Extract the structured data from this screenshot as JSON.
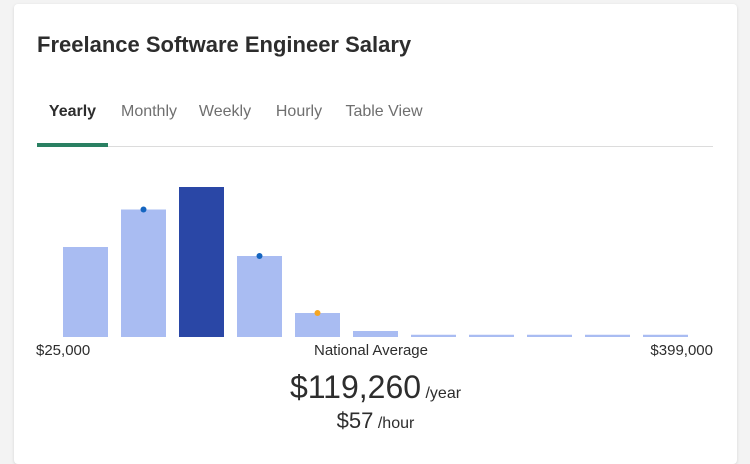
{
  "card": {
    "title": "Freelance Software Engineer Salary"
  },
  "tabs": [
    {
      "label": "Yearly",
      "active": true
    },
    {
      "label": "Monthly",
      "active": false
    },
    {
      "label": "Weekly",
      "active": false
    },
    {
      "label": "Hourly",
      "active": false
    },
    {
      "label": "Table View",
      "active": false
    }
  ],
  "colors": {
    "bar": "#a9bcf2",
    "bar_highlight": "#2a47a6",
    "marker_blue": "#1565c0",
    "marker_orange": "#f5a623",
    "tab_underline": "#2a8062"
  },
  "chart_data": {
    "type": "bar",
    "title": "",
    "xlabel": "",
    "ylabel": "",
    "values": [
      60,
      85,
      100,
      54,
      16,
      4,
      1.5,
      1.5,
      1.5,
      1.5,
      1.5
    ],
    "ylim": [
      0,
      100
    ],
    "highlight_index": 2,
    "markers": [
      {
        "bar_index": 1,
        "color": "blue"
      },
      {
        "bar_index": 3,
        "color": "blue"
      },
      {
        "bar_index": 4,
        "color": "orange"
      }
    ],
    "range_min_label": "$25,000",
    "range_max_label": "$399,000",
    "center_label": "National Average"
  },
  "salary": {
    "yearly_value": "$119,260",
    "yearly_unit": "/year",
    "hourly_value": "$57",
    "hourly_unit": "/hour"
  }
}
